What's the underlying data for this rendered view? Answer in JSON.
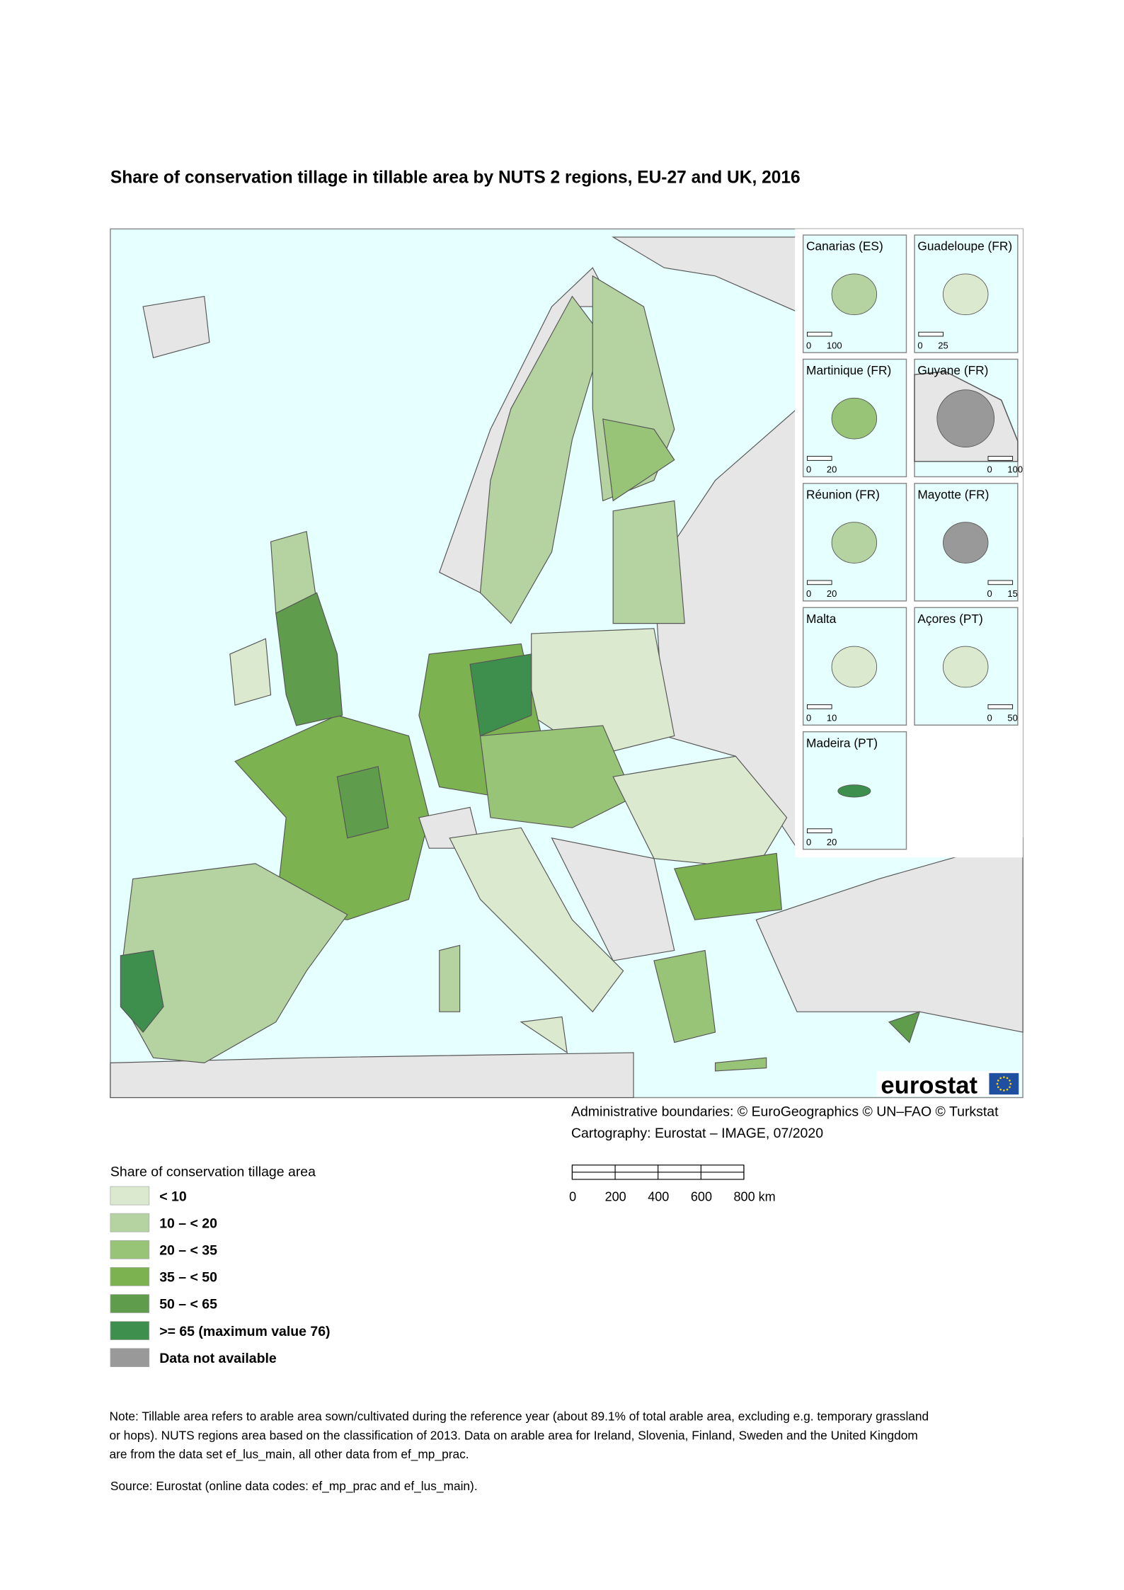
{
  "title": "Share of conservation tillage in tillable area by NUTS 2 regions, EU-27 and UK, 2016",
  "insets": [
    {
      "name": "Canarias (ES)",
      "scale": [
        "0",
        "100"
      ]
    },
    {
      "name": "Guadeloupe (FR)",
      "scale": [
        "0",
        "25"
      ]
    },
    {
      "name": "Martinique (FR)",
      "scale": [
        "0",
        "20"
      ]
    },
    {
      "name": "Guyane (FR)",
      "scale": [
        "0",
        "100"
      ]
    },
    {
      "name": "Réunion (FR)",
      "scale": [
        "0",
        "20"
      ]
    },
    {
      "name": "Mayotte (FR)",
      "scale": [
        "0",
        "15"
      ]
    },
    {
      "name": "Malta",
      "scale": [
        "0",
        "10"
      ]
    },
    {
      "name": "Açores (PT)",
      "scale": [
        "0",
        "50"
      ]
    },
    {
      "name": "Madeira (PT)",
      "scale": [
        "0",
        "20"
      ]
    }
  ],
  "logo": "eurostat",
  "credits": [
    "Administrative boundaries: © EuroGeographics © UN–FAO © Turkstat",
    "Cartography: Eurostat – IMAGE, 07/2020"
  ],
  "legend": {
    "title": "Share of conservation tillage area",
    "items": [
      {
        "label": "< 10",
        "color": "#dbe9cf"
      },
      {
        "label": "10 – < 20",
        "color": "#b5d3a0"
      },
      {
        "label": "20 – < 35",
        "color": "#98c478"
      },
      {
        "label": "35 – < 50",
        "color": "#7cb24f"
      },
      {
        "label": "50 – < 65",
        "color": "#5f9c4c"
      },
      {
        "label": ">= 65 (maximum value 76)",
        "color": "#3e8e4e"
      },
      {
        "label": "Data not available",
        "color": "#999999"
      }
    ]
  },
  "scale_bar": [
    "0",
    "200",
    "400",
    "600",
    "800 km"
  ],
  "note": [
    "Note: Tillable area refers to arable area sown/cultivated during the reference year (about 89.1% of total arable area, excluding e.g. temporary grassland",
    "or hops). NUTS regions area based on the classification of 2013. Data on  arable area for Ireland, Slovenia, Finland, Sweden and the United Kingdom",
    "are from the data set ef_lus_main, all other data from ef_mp_prac."
  ],
  "source": "Source: Eurostat (online data codes: ef_mp_prac and ef_lus_main)."
}
